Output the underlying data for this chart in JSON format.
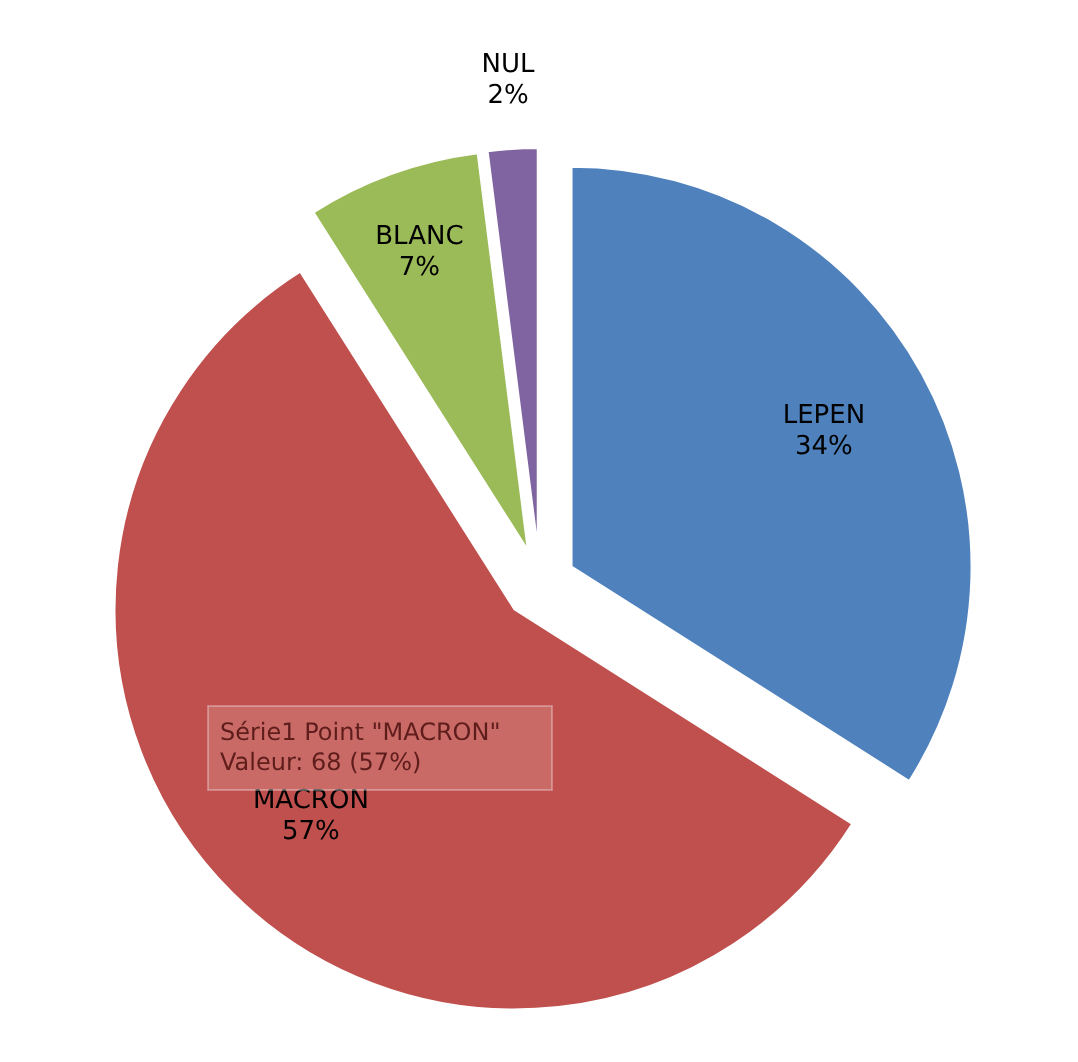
{
  "chart_data": {
    "type": "pie",
    "categories": [
      "LEPEN",
      "MACRON",
      "BLANC",
      "NUL"
    ],
    "values": [
      34,
      57,
      7,
      2
    ],
    "colors": [
      "#4f81bd",
      "#c0504d",
      "#9bbb59",
      "#8064a2"
    ],
    "data_labels": true,
    "value_labels": [
      "34%",
      "57%",
      "7%",
      "2%"
    ],
    "legend": false,
    "annotations": [
      "Série1 Point \"MACRON\"\nValeur: 68 (57%)"
    ]
  }
}
